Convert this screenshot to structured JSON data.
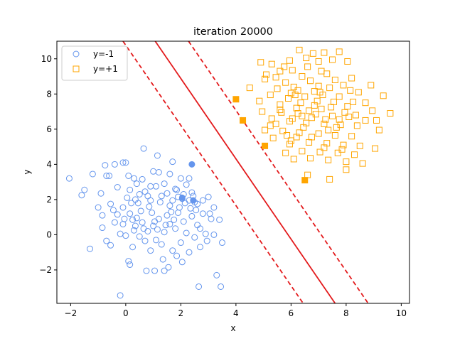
{
  "chart_data": {
    "type": "scatter",
    "title": "iteration 20000",
    "xlabel": "x",
    "ylabel": "y",
    "xlim": [
      -2.5,
      10.3
    ],
    "ylim": [
      -3.9,
      11.0
    ],
    "xticks": [
      -2,
      0,
      2,
      4,
      6,
      8,
      10
    ],
    "yticks": [
      -2,
      0,
      2,
      4,
      6,
      8,
      10
    ],
    "grid": false,
    "legend_position": "top-left",
    "colors": {
      "neg": "#6495ed",
      "pos": "#ffa500",
      "line": "#e31a1c"
    },
    "decision_boundary": {
      "center": [
        [
          1.07,
          11.0
        ],
        [
          7.6,
          -3.9
        ]
      ],
      "margin_low": [
        [
          -0.1,
          11.0
        ],
        [
          6.44,
          -3.9
        ]
      ],
      "margin_high": [
        [
          2.28,
          11.0
        ],
        [
          8.8,
          -3.9
        ]
      ]
    },
    "series": [
      {
        "name": "y=-1",
        "marker": "circle",
        "points": [
          [
            -2.05,
            3.2
          ],
          [
            -1.5,
            2.55
          ],
          [
            -1.6,
            2.25
          ],
          [
            -1.2,
            3.45
          ],
          [
            -0.9,
            2.35
          ],
          [
            -0.75,
            3.95
          ],
          [
            -0.7,
            3.35
          ],
          [
            -0.6,
            3.35
          ],
          [
            -0.4,
            4.0
          ],
          [
            -0.1,
            4.1
          ],
          [
            0.0,
            4.1
          ],
          [
            -1.0,
            1.55
          ],
          [
            -0.85,
            1.1
          ],
          [
            -0.55,
            1.75
          ],
          [
            -0.45,
            1.4
          ],
          [
            -0.3,
            1.15
          ],
          [
            -0.3,
            2.7
          ],
          [
            -0.1,
            1.55
          ],
          [
            0.05,
            2.1
          ],
          [
            0.1,
            3.35
          ],
          [
            0.15,
            2.55
          ],
          [
            0.2,
            1.8
          ],
          [
            0.3,
            3.2
          ],
          [
            0.4,
            2.9
          ],
          [
            0.5,
            2.3
          ],
          [
            0.6,
            3.15
          ],
          [
            0.7,
            2.45
          ],
          [
            0.8,
            2.2
          ],
          [
            0.9,
            1.95
          ],
          [
            1.0,
            3.6
          ],
          [
            1.1,
            2.75
          ],
          [
            1.2,
            3.55
          ],
          [
            1.3,
            2.2
          ],
          [
            1.4,
            2.9
          ],
          [
            1.5,
            2.35
          ],
          [
            1.6,
            3.45
          ],
          [
            1.7,
            1.95
          ],
          [
            1.8,
            2.6
          ],
          [
            1.9,
            2.15
          ],
          [
            2.0,
            3.2
          ],
          [
            2.1,
            2.3
          ],
          [
            2.2,
            2.85
          ],
          [
            2.3,
            1.95
          ],
          [
            2.4,
            2.4
          ],
          [
            2.5,
            1.85
          ],
          [
            2.6,
            1.75
          ],
          [
            -1.3,
            -0.8
          ],
          [
            -0.85,
            0.4
          ],
          [
            -0.7,
            -0.35
          ],
          [
            -0.55,
            -0.6
          ],
          [
            -0.4,
            0.7
          ],
          [
            -0.2,
            0.05
          ],
          [
            -0.1,
            0.6
          ],
          [
            0.0,
            -0.05
          ],
          [
            0.1,
            -1.5
          ],
          [
            0.15,
            -1.7
          ],
          [
            0.25,
            -0.7
          ],
          [
            0.3,
            0.25
          ],
          [
            0.4,
            0.95
          ],
          [
            0.5,
            -0.1
          ],
          [
            0.6,
            0.7
          ],
          [
            0.7,
            -0.35
          ],
          [
            0.75,
            -2.05
          ],
          [
            0.8,
            0.2
          ],
          [
            0.9,
            -0.9
          ],
          [
            1.0,
            0.5
          ],
          [
            1.05,
            -2.05
          ],
          [
            1.1,
            -0.3
          ],
          [
            1.2,
            0.9
          ],
          [
            1.3,
            -0.55
          ],
          [
            1.35,
            -1.4
          ],
          [
            1.4,
            0.15
          ],
          [
            1.5,
            1.1
          ],
          [
            1.55,
            -1.85
          ],
          [
            1.6,
            0.6
          ],
          [
            1.7,
            -0.9
          ],
          [
            1.8,
            0.35
          ],
          [
            1.85,
            -1.2
          ],
          [
            1.9,
            1.25
          ],
          [
            2.0,
            -0.45
          ],
          [
            2.05,
            -1.55
          ],
          [
            2.1,
            0.75
          ],
          [
            2.2,
            0.1
          ],
          [
            2.3,
            -1.0
          ],
          [
            2.4,
            1.05
          ],
          [
            2.5,
            -0.15
          ],
          [
            2.6,
            0.55
          ],
          [
            2.7,
            -0.7
          ],
          [
            2.8,
            1.2
          ],
          [
            2.9,
            0.05
          ],
          [
            3.0,
            2.15
          ],
          [
            3.1,
            0.9
          ],
          [
            3.2,
            1.55
          ],
          [
            3.3,
            -2.3
          ],
          [
            3.4,
            0.85
          ],
          [
            3.5,
            -0.45
          ],
          [
            3.45,
            -2.95
          ],
          [
            2.65,
            -2.95
          ],
          [
            1.4,
            -2.05
          ],
          [
            -0.2,
            -3.45
          ],
          [
            0.65,
            4.9
          ],
          [
            1.15,
            4.5
          ],
          [
            1.7,
            4.15
          ],
          [
            2.05,
            2.05
          ],
          [
            2.3,
            3.2
          ],
          [
            2.55,
            1.4
          ],
          [
            2.8,
            1.95
          ],
          [
            3.05,
            1.2
          ],
          [
            0.35,
            0.5
          ],
          [
            0.55,
            1.35
          ],
          [
            0.85,
            1.6
          ],
          [
            1.25,
            1.85
          ],
          [
            1.45,
            0.55
          ],
          [
            1.65,
            1.3
          ],
          [
            1.75,
            0.85
          ],
          [
            1.95,
            1.55
          ],
          [
            0.15,
            1.2
          ],
          [
            0.45,
            1.8
          ],
          [
            0.95,
            1.25
          ],
          [
            1.15,
            0.3
          ],
          [
            2.35,
            1.5
          ],
          [
            2.15,
            1.8
          ],
          [
            1.05,
            0.75
          ],
          [
            0.65,
            0.35
          ],
          [
            0.25,
            0.85
          ],
          [
            -0.05,
            0.9
          ],
          [
            1.85,
            2.55
          ],
          [
            2.45,
            2.2
          ],
          [
            0.9,
            2.75
          ],
          [
            0.35,
            2.0
          ],
          [
            1.6,
            1.65
          ],
          [
            2.7,
            0.35
          ],
          [
            3.2,
            0.0
          ],
          [
            2.95,
            -0.35
          ]
        ],
        "support_vectors": [
          [
            2.4,
            4.0
          ],
          [
            2.05,
            2.1
          ],
          [
            2.45,
            1.95
          ]
        ]
      },
      {
        "name": "y=+1",
        "marker": "square",
        "points": [
          [
            4.9,
            9.8
          ],
          [
            5.3,
            9.7
          ],
          [
            5.6,
            9.3
          ],
          [
            5.95,
            9.9
          ],
          [
            6.3,
            10.5
          ],
          [
            6.55,
            10.05
          ],
          [
            6.8,
            10.3
          ],
          [
            7.0,
            9.85
          ],
          [
            7.2,
            10.35
          ],
          [
            7.5,
            9.95
          ],
          [
            7.75,
            10.4
          ],
          [
            8.05,
            9.85
          ],
          [
            5.1,
            9.1
          ],
          [
            5.05,
            8.85
          ],
          [
            5.5,
            8.3
          ],
          [
            5.8,
            8.65
          ],
          [
            6.1,
            8.4
          ],
          [
            6.4,
            9.0
          ],
          [
            6.7,
            8.75
          ],
          [
            7.0,
            8.45
          ],
          [
            7.3,
            9.15
          ],
          [
            7.6,
            8.8
          ],
          [
            7.9,
            8.5
          ],
          [
            8.2,
            8.9
          ],
          [
            4.5,
            8.35
          ],
          [
            4.85,
            7.6
          ],
          [
            5.25,
            7.95
          ],
          [
            5.6,
            7.4
          ],
          [
            5.9,
            7.75
          ],
          [
            6.2,
            7.2
          ],
          [
            6.5,
            7.85
          ],
          [
            6.85,
            7.35
          ],
          [
            7.15,
            7.95
          ],
          [
            7.45,
            7.25
          ],
          [
            7.75,
            7.85
          ],
          [
            8.05,
            7.3
          ],
          [
            4.95,
            7.0
          ],
          [
            5.3,
            6.6
          ],
          [
            5.65,
            6.95
          ],
          [
            5.95,
            6.45
          ],
          [
            6.25,
            6.9
          ],
          [
            6.55,
            6.35
          ],
          [
            6.9,
            6.85
          ],
          [
            7.2,
            6.3
          ],
          [
            7.5,
            6.75
          ],
          [
            7.8,
            6.25
          ],
          [
            8.1,
            6.7
          ],
          [
            8.4,
            6.2
          ],
          [
            5.05,
            5.95
          ],
          [
            5.35,
            5.5
          ],
          [
            5.7,
            5.9
          ],
          [
            6.0,
            5.35
          ],
          [
            6.3,
            5.8
          ],
          [
            6.65,
            5.25
          ],
          [
            7.0,
            5.75
          ],
          [
            7.3,
            5.2
          ],
          [
            7.6,
            5.65
          ],
          [
            7.9,
            5.1
          ],
          [
            8.2,
            5.6
          ],
          [
            8.5,
            5.05
          ],
          [
            5.8,
            4.65
          ],
          [
            6.1,
            4.3
          ],
          [
            6.4,
            4.75
          ],
          [
            6.7,
            4.35
          ],
          [
            7.05,
            4.7
          ],
          [
            7.35,
            4.25
          ],
          [
            7.7,
            4.65
          ],
          [
            8.0,
            4.15
          ],
          [
            8.3,
            4.55
          ],
          [
            8.6,
            4.05
          ],
          [
            9.05,
            4.9
          ],
          [
            8.0,
            3.7
          ],
          [
            6.6,
            3.4
          ],
          [
            7.4,
            3.15
          ],
          [
            8.7,
            6.5
          ],
          [
            8.95,
            7.05
          ],
          [
            9.1,
            6.5
          ],
          [
            9.35,
            7.9
          ],
          [
            9.6,
            6.9
          ],
          [
            8.9,
            8.5
          ],
          [
            8.45,
            8.1
          ],
          [
            8.7,
            7.5
          ],
          [
            8.35,
            6.8
          ],
          [
            9.2,
            5.95
          ],
          [
            5.75,
            9.55
          ],
          [
            6.05,
            9.35
          ],
          [
            6.6,
            9.55
          ],
          [
            7.1,
            9.3
          ],
          [
            6.25,
            8.2
          ],
          [
            6.95,
            7.6
          ],
          [
            6.05,
            6.6
          ],
          [
            6.45,
            6.1
          ],
          [
            7.25,
            6.55
          ],
          [
            7.65,
            6.1
          ],
          [
            5.85,
            5.65
          ],
          [
            6.75,
            5.55
          ],
          [
            5.45,
            8.95
          ],
          [
            6.35,
            7.5
          ],
          [
            7.05,
            8.1
          ],
          [
            7.55,
            7.55
          ],
          [
            5.45,
            6.3
          ],
          [
            5.95,
            5.15
          ],
          [
            6.75,
            6.65
          ],
          [
            7.35,
            5.95
          ],
          [
            6.15,
            7.95
          ],
          [
            6.85,
            8.15
          ],
          [
            7.95,
            6.95
          ],
          [
            8.25,
            7.55
          ],
          [
            5.6,
            7.1
          ],
          [
            6.4,
            6.75
          ],
          [
            7.1,
            7.15
          ],
          [
            7.75,
            6.55
          ],
          [
            6.0,
            8.05
          ],
          [
            6.65,
            7.05
          ],
          [
            7.4,
            8.35
          ],
          [
            8.15,
            8.2
          ],
          [
            5.25,
            6.2
          ],
          [
            6.2,
            5.55
          ],
          [
            7.2,
            4.95
          ],
          [
            7.85,
            4.85
          ]
        ],
        "support_vectors": [
          [
            4.0,
            7.7
          ],
          [
            4.25,
            6.5
          ],
          [
            5.05,
            5.05
          ],
          [
            6.5,
            3.1
          ]
        ]
      }
    ]
  }
}
